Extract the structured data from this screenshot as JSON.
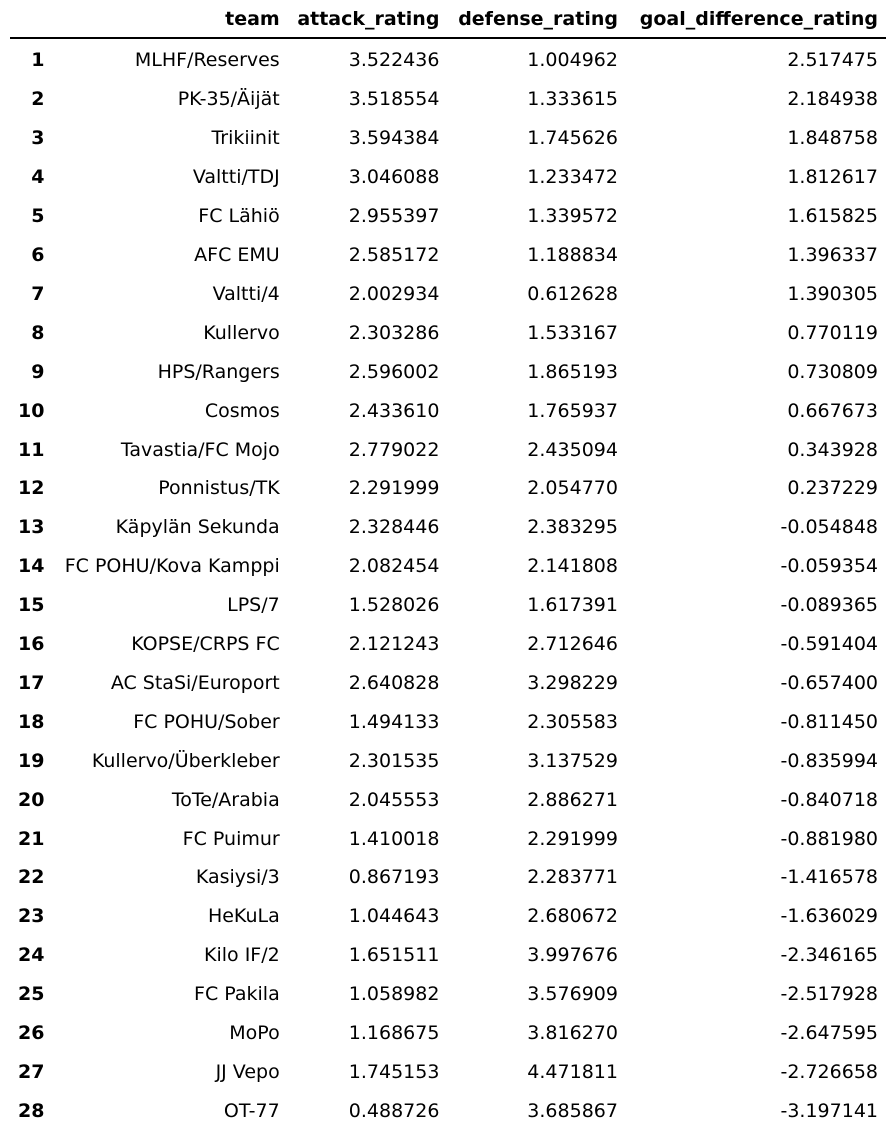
{
  "table": {
    "columns": [
      "",
      "team",
      "attack_rating",
      "defense_rating",
      "goal_difference_rating"
    ],
    "rows": [
      {
        "index": "1",
        "team": "MLHF/Reserves",
        "attack_rating": "3.522436",
        "defense_rating": "1.004962",
        "goal_difference_rating": "2.517475"
      },
      {
        "index": "2",
        "team": "PK-35/Äijät",
        "attack_rating": "3.518554",
        "defense_rating": "1.333615",
        "goal_difference_rating": "2.184938"
      },
      {
        "index": "3",
        "team": "Trikiinit",
        "attack_rating": "3.594384",
        "defense_rating": "1.745626",
        "goal_difference_rating": "1.848758"
      },
      {
        "index": "4",
        "team": "Valtti/TDJ",
        "attack_rating": "3.046088",
        "defense_rating": "1.233472",
        "goal_difference_rating": "1.812617"
      },
      {
        "index": "5",
        "team": "FC Lähiö",
        "attack_rating": "2.955397",
        "defense_rating": "1.339572",
        "goal_difference_rating": "1.615825"
      },
      {
        "index": "6",
        "team": "AFC EMU",
        "attack_rating": "2.585172",
        "defense_rating": "1.188834",
        "goal_difference_rating": "1.396337"
      },
      {
        "index": "7",
        "team": "Valtti/4",
        "attack_rating": "2.002934",
        "defense_rating": "0.612628",
        "goal_difference_rating": "1.390305"
      },
      {
        "index": "8",
        "team": "Kullervo",
        "attack_rating": "2.303286",
        "defense_rating": "1.533167",
        "goal_difference_rating": "0.770119"
      },
      {
        "index": "9",
        "team": "HPS/Rangers",
        "attack_rating": "2.596002",
        "defense_rating": "1.865193",
        "goal_difference_rating": "0.730809"
      },
      {
        "index": "10",
        "team": "Cosmos",
        "attack_rating": "2.433610",
        "defense_rating": "1.765937",
        "goal_difference_rating": "0.667673"
      },
      {
        "index": "11",
        "team": "Tavastia/FC Mojo",
        "attack_rating": "2.779022",
        "defense_rating": "2.435094",
        "goal_difference_rating": "0.343928"
      },
      {
        "index": "12",
        "team": "Ponnistus/TK",
        "attack_rating": "2.291999",
        "defense_rating": "2.054770",
        "goal_difference_rating": "0.237229"
      },
      {
        "index": "13",
        "team": "Käpylän Sekunda",
        "attack_rating": "2.328446",
        "defense_rating": "2.383295",
        "goal_difference_rating": "-0.054848"
      },
      {
        "index": "14",
        "team": "FC POHU/Kova Kamppi",
        "attack_rating": "2.082454",
        "defense_rating": "2.141808",
        "goal_difference_rating": "-0.059354"
      },
      {
        "index": "15",
        "team": "LPS/7",
        "attack_rating": "1.528026",
        "defense_rating": "1.617391",
        "goal_difference_rating": "-0.089365"
      },
      {
        "index": "16",
        "team": "KOPSE/CRPS FC",
        "attack_rating": "2.121243",
        "defense_rating": "2.712646",
        "goal_difference_rating": "-0.591404"
      },
      {
        "index": "17",
        "team": "AC StaSi/Europort",
        "attack_rating": "2.640828",
        "defense_rating": "3.298229",
        "goal_difference_rating": "-0.657400"
      },
      {
        "index": "18",
        "team": "FC POHU/Sober",
        "attack_rating": "1.494133",
        "defense_rating": "2.305583",
        "goal_difference_rating": "-0.811450"
      },
      {
        "index": "19",
        "team": "Kullervo/Überkleber",
        "attack_rating": "2.301535",
        "defense_rating": "3.137529",
        "goal_difference_rating": "-0.835994"
      },
      {
        "index": "20",
        "team": "ToTe/Arabia",
        "attack_rating": "2.045553",
        "defense_rating": "2.886271",
        "goal_difference_rating": "-0.840718"
      },
      {
        "index": "21",
        "team": "FC Puimur",
        "attack_rating": "1.410018",
        "defense_rating": "2.291999",
        "goal_difference_rating": "-0.881980"
      },
      {
        "index": "22",
        "team": "Kasiysi/3",
        "attack_rating": "0.867193",
        "defense_rating": "2.283771",
        "goal_difference_rating": "-1.416578"
      },
      {
        "index": "23",
        "team": "HeKuLa",
        "attack_rating": "1.044643",
        "defense_rating": "2.680672",
        "goal_difference_rating": "-1.636029"
      },
      {
        "index": "24",
        "team": "Kilo IF/2",
        "attack_rating": "1.651511",
        "defense_rating": "3.997676",
        "goal_difference_rating": "-2.346165"
      },
      {
        "index": "25",
        "team": "FC Pakila",
        "attack_rating": "1.058982",
        "defense_rating": "3.576909",
        "goal_difference_rating": "-2.517928"
      },
      {
        "index": "26",
        "team": "MoPo",
        "attack_rating": "1.168675",
        "defense_rating": "3.816270",
        "goal_difference_rating": "-2.647595"
      },
      {
        "index": "27",
        "team": "JJ Vepo",
        "attack_rating": "1.745153",
        "defense_rating": "4.471811",
        "goal_difference_rating": "-2.726658"
      },
      {
        "index": "28",
        "team": "OT-77",
        "attack_rating": "0.488726",
        "defense_rating": "3.685867",
        "goal_difference_rating": "-3.197141"
      }
    ]
  }
}
